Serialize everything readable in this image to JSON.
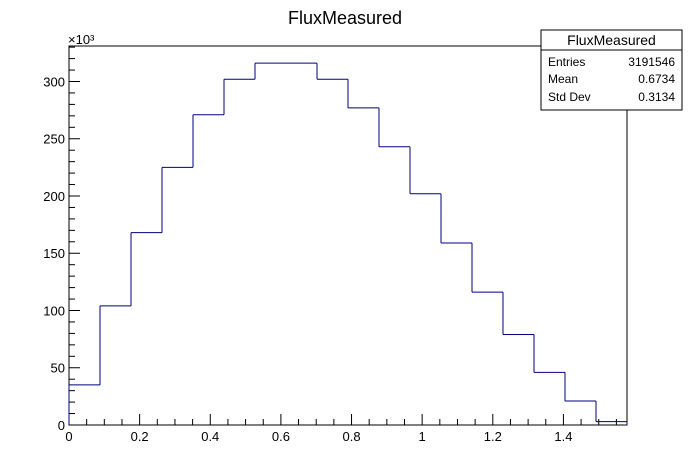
{
  "chart_data": {
    "type": "histogram",
    "title": "FluxMeasured",
    "xlabel": "",
    "ylabel": "",
    "y_multiplier_label": "×10³",
    "xlim": [
      0,
      1.58
    ],
    "ylim": [
      0,
      331
    ],
    "bin_edges": [
      0,
      0.0878,
      0.1756,
      0.2633,
      0.3511,
      0.4389,
      0.5267,
      0.6144,
      0.7022,
      0.79,
      0.8778,
      0.9656,
      1.0533,
      1.1411,
      1.2289,
      1.3167,
      1.4044,
      1.4922,
      1.58
    ],
    "values": [
      35,
      104,
      168,
      225,
      271,
      302,
      316,
      316,
      302,
      277,
      243,
      202,
      159,
      116,
      79,
      46,
      21,
      3
    ],
    "x_ticks": [
      0,
      0.2,
      0.4,
      0.6,
      0.8,
      1,
      1.2,
      1.4
    ],
    "x_tick_labels": [
      "0",
      "0.2",
      "0.4",
      "0.6",
      "0.8",
      "1",
      "1.2",
      "1.4"
    ],
    "y_ticks": [
      0,
      50,
      100,
      150,
      200,
      250,
      300
    ],
    "y_tick_labels": [
      "0",
      "50",
      "100",
      "150",
      "200",
      "250",
      "300"
    ],
    "line_color": "#000080",
    "stats_box": {
      "title": "FluxMeasured",
      "placement": "top-right",
      "rows": [
        {
          "label": "Entries",
          "value": "3191546"
        },
        {
          "label": "Mean",
          "value": "0.6734"
        },
        {
          "label": "Std Dev",
          "value": "0.3134"
        }
      ]
    }
  }
}
